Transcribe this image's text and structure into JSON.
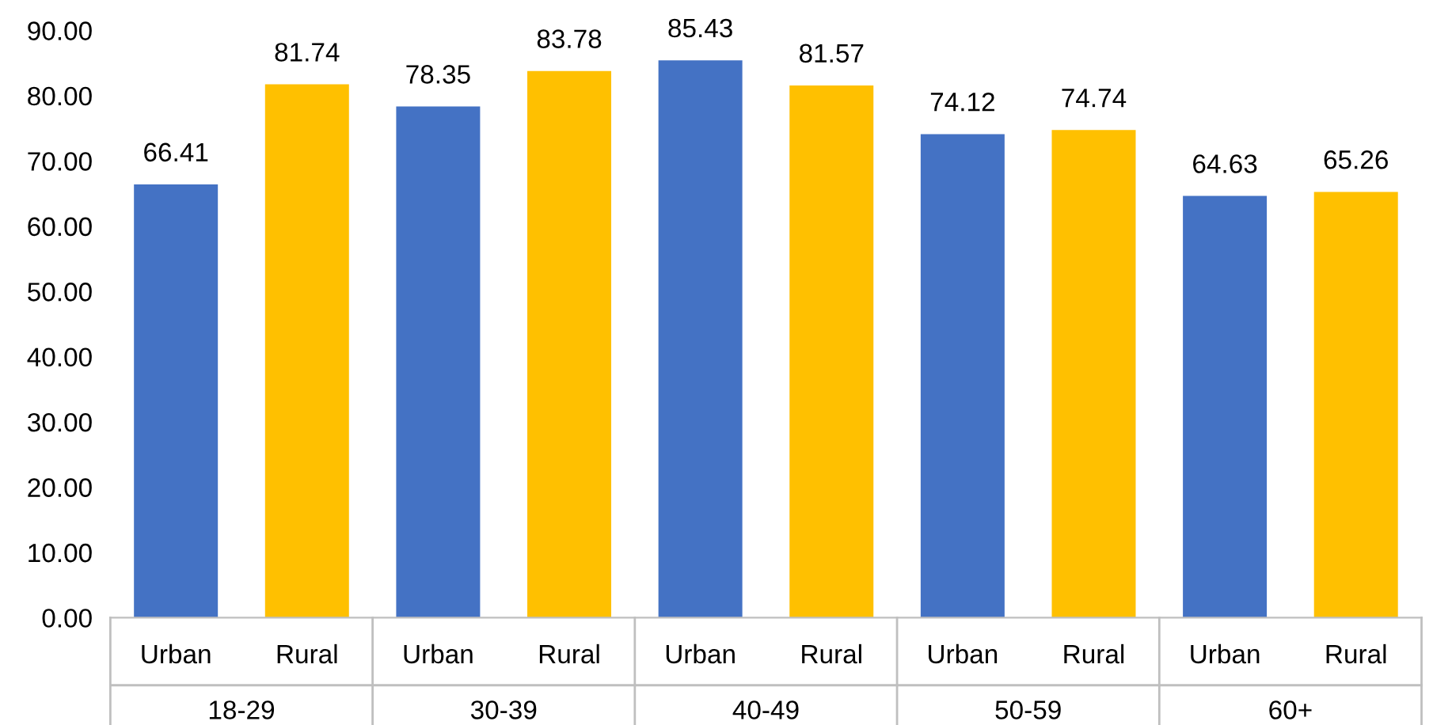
{
  "chart_data": {
    "type": "bar",
    "categories": [
      "18-29",
      "30-39",
      "40-49",
      "50-59",
      "60+"
    ],
    "series": [
      {
        "name": "Urban",
        "color": "#4472c4",
        "values": [
          66.41,
          78.35,
          85.43,
          74.12,
          64.63
        ]
      },
      {
        "name": "Rural",
        "color": "#ffc000",
        "values": [
          81.74,
          83.78,
          81.57,
          74.74,
          65.26
        ]
      }
    ],
    "ylim": [
      0,
      90
    ],
    "yticks": [
      {
        "value": 0,
        "label": "0.00"
      },
      {
        "value": 10,
        "label": "10.00"
      },
      {
        "value": 20,
        "label": "20.00"
      },
      {
        "value": 30,
        "label": "30.00"
      },
      {
        "value": 40,
        "label": "40.00"
      },
      {
        "value": 50,
        "label": "50.00"
      },
      {
        "value": 60,
        "label": "60.00"
      },
      {
        "value": 70,
        "label": "70.00"
      },
      {
        "value": 80,
        "label": "80.00"
      },
      {
        "value": 90,
        "label": "90.00"
      }
    ],
    "data_labels": true,
    "grid": false
  }
}
